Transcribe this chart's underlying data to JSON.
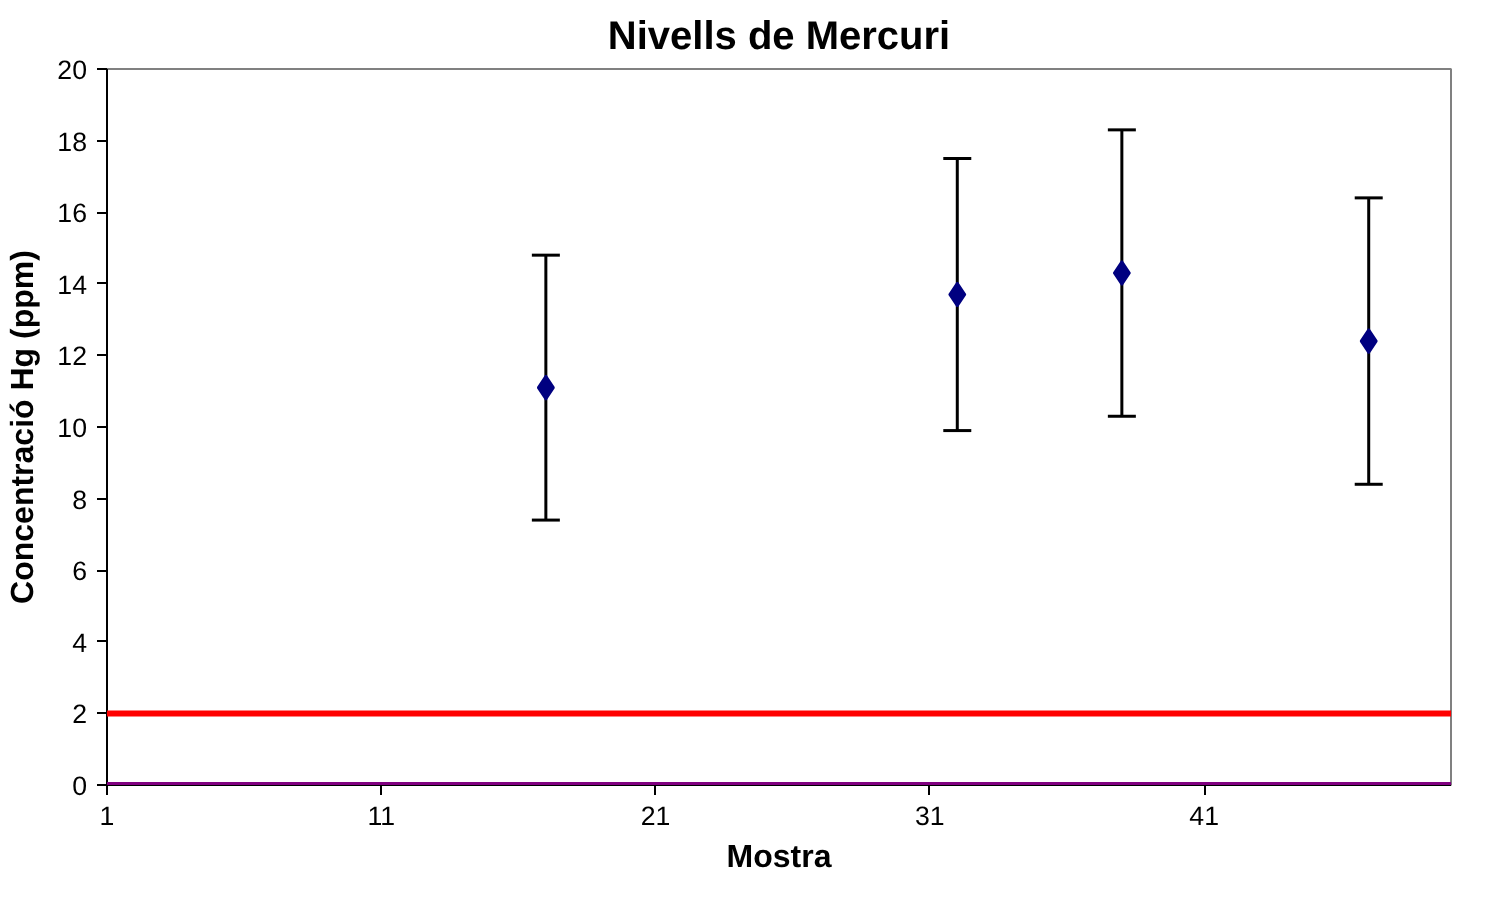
{
  "chart_data": {
    "type": "scatter",
    "title": "Nivells de Mercuri",
    "xlabel": "Mostra",
    "ylabel": "Concentració Hg (ppm)",
    "x": [
      17,
      32,
      38,
      47
    ],
    "series": [
      {
        "color": "#000080",
        "values": [
          11.1,
          13.7,
          14.3,
          12.4
        ],
        "errors": [
          3.7,
          3.8,
          4.0,
          4.0
        ]
      }
    ],
    "xlim": [
      1,
      50
    ],
    "xticks": [
      1,
      11,
      21,
      31,
      41
    ],
    "ylim": [
      0,
      20
    ],
    "yticks": [
      0,
      2,
      4,
      6,
      8,
      10,
      12,
      14,
      16,
      18,
      20
    ],
    "ref_lines": [
      {
        "axis": "y",
        "value": 2,
        "color": "#ff0000"
      },
      {
        "axis": "y",
        "value": 0,
        "color": "#800080"
      }
    ],
    "grid": false,
    "marker": "diamond"
  }
}
